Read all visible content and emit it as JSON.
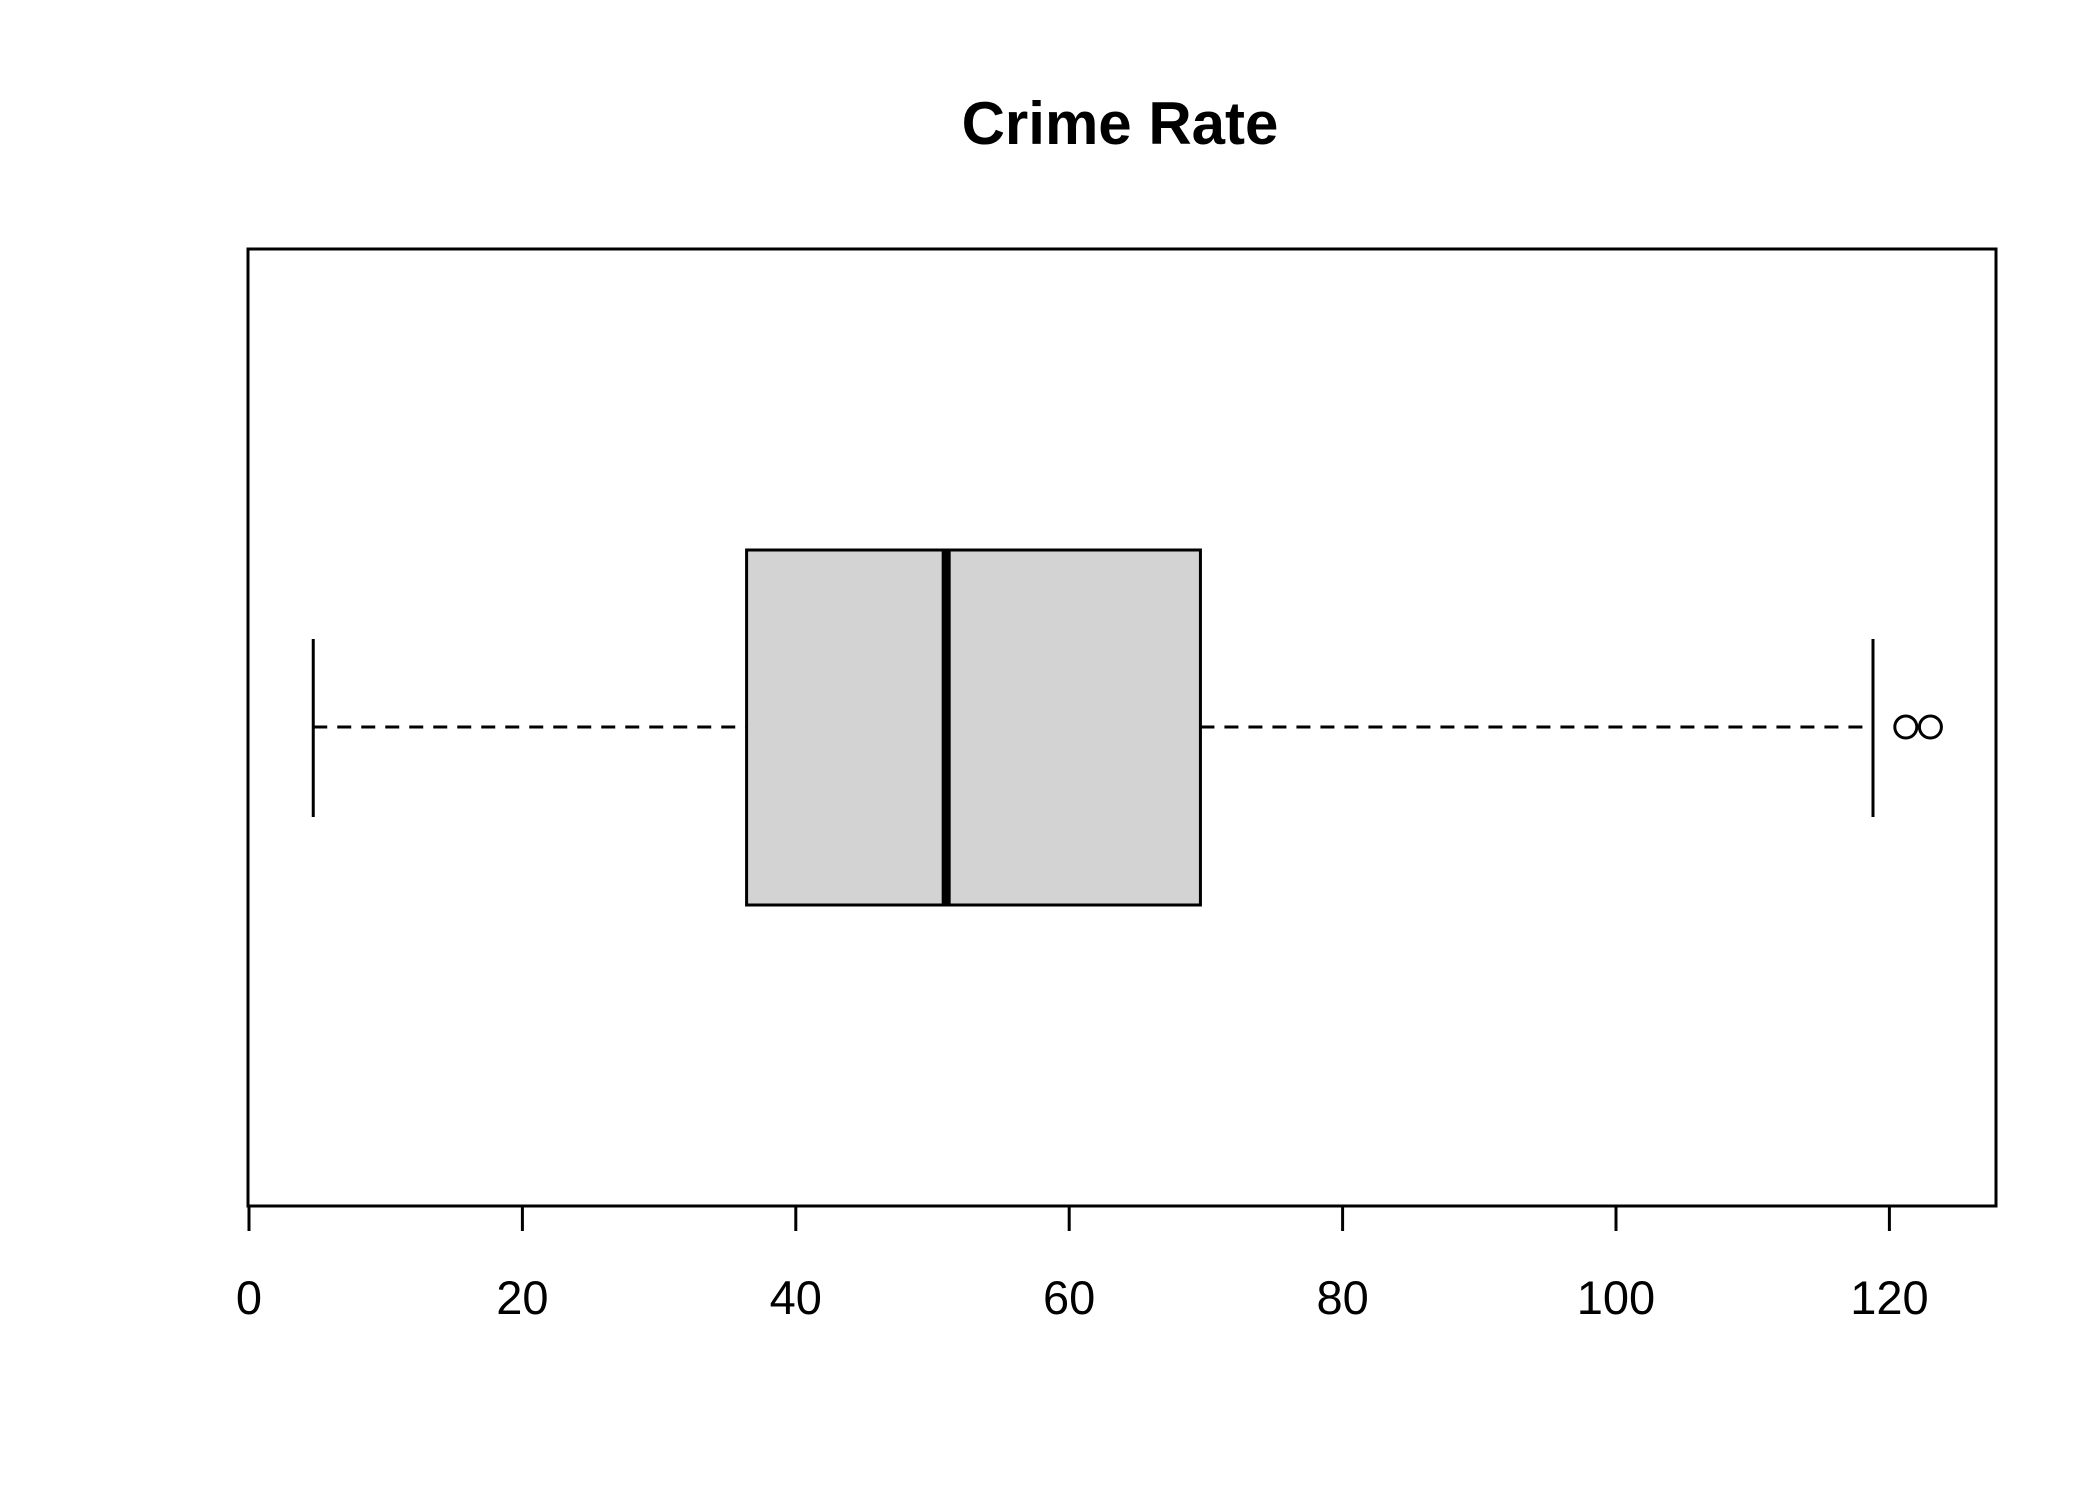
{
  "chart_data": {
    "type": "boxplot",
    "orientation": "horizontal",
    "title": "Crime Rate",
    "xlabel": "",
    "ylabel": "",
    "xlim": [
      0,
      128
    ],
    "ticks": [
      0,
      20,
      40,
      60,
      80,
      100,
      120
    ],
    "tick_labels": [
      "0",
      "20",
      "40",
      "60",
      "80",
      "100",
      "120"
    ],
    "box": {
      "whisker_low": 4.7,
      "q1": 36.4,
      "median": 51.0,
      "q3": 69.6,
      "whisker_high": 118.8,
      "outliers": [
        121.2,
        123.0
      ]
    },
    "box_fill": "#d3d3d3",
    "line_color": "#000000",
    "grid": false
  }
}
